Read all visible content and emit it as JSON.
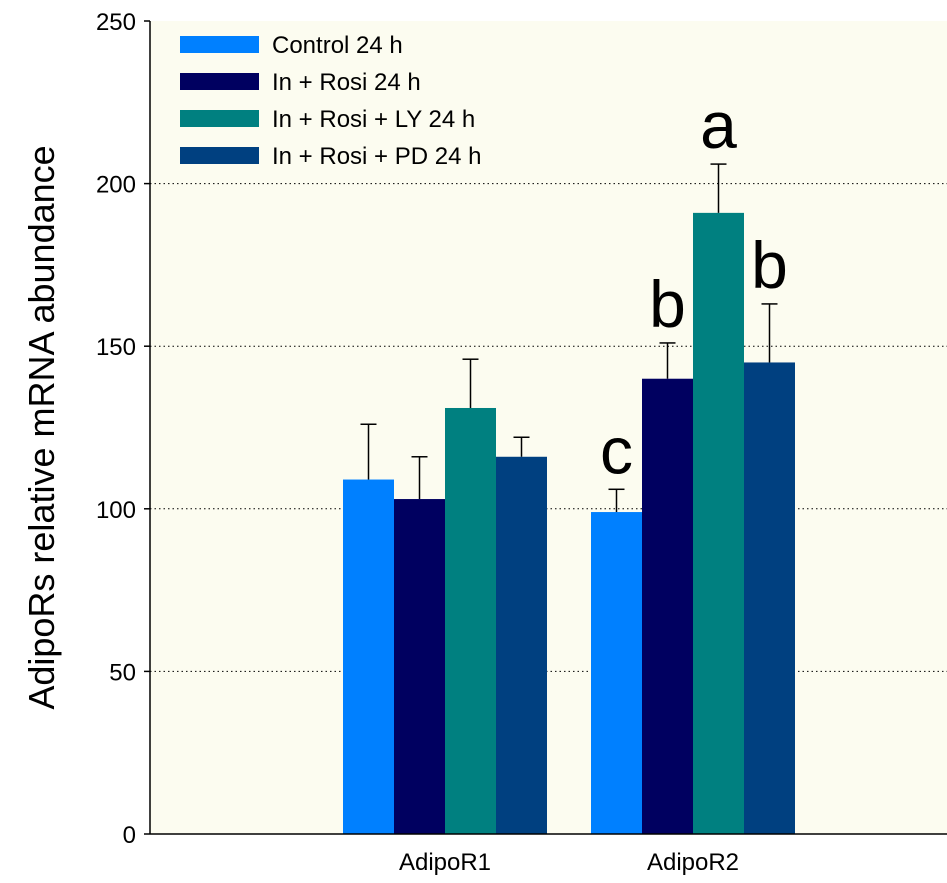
{
  "chart_data": {
    "type": "bar",
    "ylabel": "AdipoRs relative mRNA abundance",
    "xlabel": "",
    "ylim": [
      0,
      250
    ],
    "yticks": [
      0,
      50,
      100,
      150,
      200,
      250
    ],
    "grid": "horizontal dotted at 50, 100, 150, 200",
    "legend_position": "top-left",
    "plot_background": "#fcfcf0",
    "categories": [
      "AdipoR1",
      "AdipoR2"
    ],
    "series": [
      {
        "name": "Control 24 h",
        "color": "#0080ff",
        "values": [
          109,
          99
        ],
        "errors": [
          17,
          7
        ]
      },
      {
        "name": "In + Rosi 24 h",
        "color": "#000060",
        "values": [
          103,
          140
        ],
        "errors": [
          13,
          11
        ]
      },
      {
        "name": "In + Rosi + LY 24 h",
        "color": "#008080",
        "values": [
          131,
          191
        ],
        "errors": [
          15,
          15
        ]
      },
      {
        "name": "In + Rosi + PD 24 h",
        "color": "#004080",
        "values": [
          116,
          145
        ],
        "errors": [
          6,
          18
        ]
      }
    ],
    "annotations": [
      {
        "text": "c",
        "category": "AdipoR2",
        "series": 0
      },
      {
        "text": "b",
        "category": "AdipoR2",
        "series": 1
      },
      {
        "text": "a",
        "category": "AdipoR2",
        "series": 2
      },
      {
        "text": "b",
        "category": "AdipoR2",
        "series": 3
      }
    ]
  }
}
